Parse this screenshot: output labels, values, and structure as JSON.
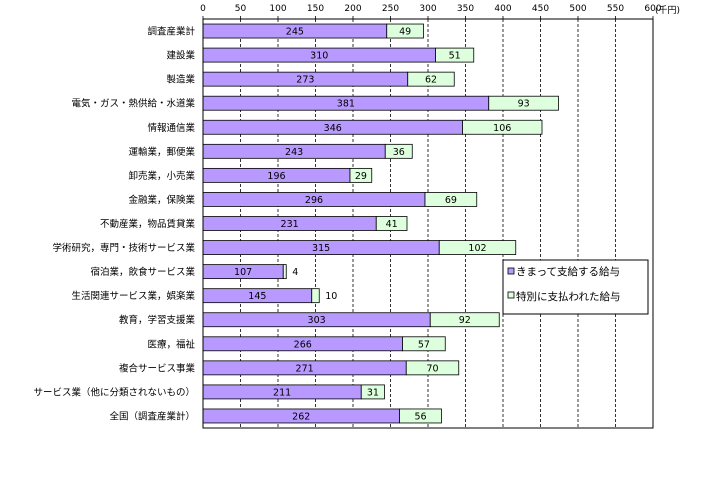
{
  "chart_data": {
    "type": "bar",
    "orientation": "horizontal",
    "stacked": true,
    "unit": "(千円)",
    "xlim": [
      0,
      600
    ],
    "xticks": [
      0,
      50,
      100,
      150,
      200,
      250,
      300,
      350,
      400,
      450,
      500,
      550,
      600
    ],
    "grid": "vertical-dashed",
    "legend_position": "right",
    "categories": [
      "調査産業計",
      "建設業",
      "製造業",
      "電気・ガス・熱供給・水道業",
      "情報通信業",
      "運輸業，郵便業",
      "卸売業，小売業",
      "金融業，保険業",
      "不動産業，物品賃貸業",
      "学術研究，専門・技術サービス業",
      "宿泊業，飲食サービス業",
      "生活関連サービス業，娯楽業",
      "教育，学習支援業",
      "医療，福祉",
      "複合サービス事業",
      "サービス業（他に分類されないもの）",
      "全国（調査産業計）"
    ],
    "series": [
      {
        "name": "きまって支給する給与",
        "color": "#b799ff",
        "values": [
          245,
          310,
          273,
          381,
          346,
          243,
          196,
          296,
          231,
          315,
          107,
          145,
          303,
          266,
          271,
          211,
          262
        ]
      },
      {
        "name": "特別に支払われた給与",
        "color": "#ddffdd",
        "values": [
          49,
          51,
          62,
          93,
          106,
          36,
          29,
          69,
          41,
          102,
          4,
          10,
          92,
          57,
          70,
          31,
          56
        ]
      }
    ]
  }
}
